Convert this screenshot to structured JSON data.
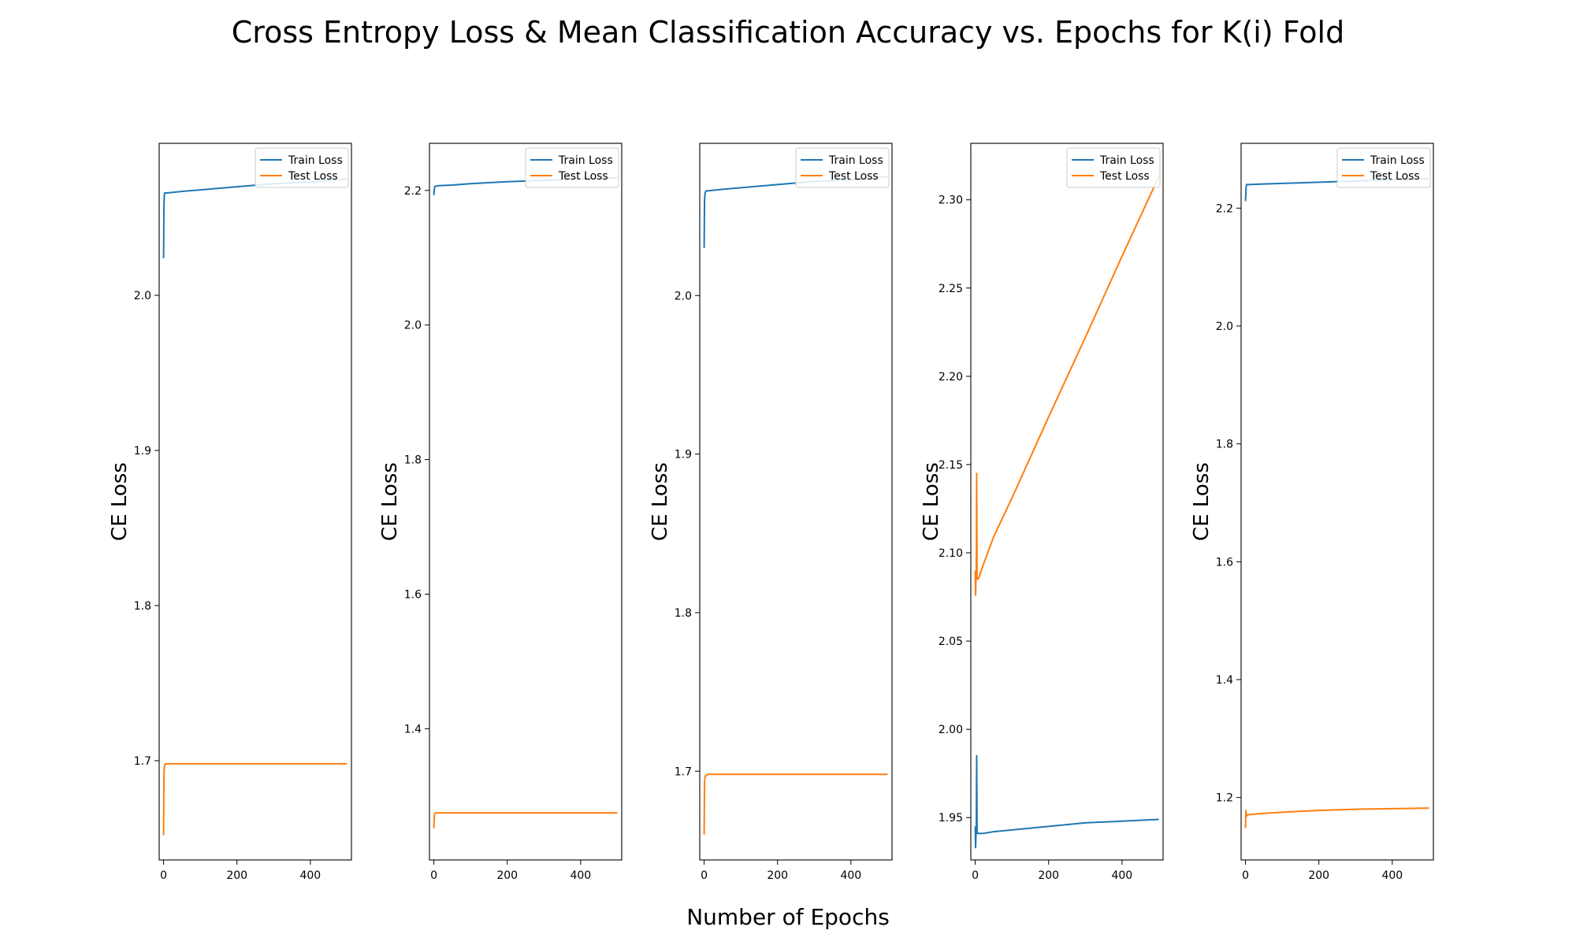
{
  "figure": {
    "title": "Cross Entropy Loss & Mean Classification Accuracy vs. Epochs for K(i) Fold",
    "xlabel": "Number of Epochs"
  },
  "chart_data": [
    {
      "type": "line",
      "ylabel": "CE Loss",
      "xlim": [
        -12,
        512
      ],
      "ylim": [
        1.636,
        2.098
      ],
      "xticks": [
        0,
        200,
        400
      ],
      "yticks": [
        1.7,
        1.8,
        1.9,
        2.0
      ],
      "legend": "top-right",
      "series": [
        {
          "name": "Train Loss",
          "color": "#1f77b4",
          "x": [
            0,
            1,
            2,
            3,
            5,
            10,
            50,
            100,
            200,
            300,
            400,
            500
          ],
          "y": [
            2.024,
            2.058,
            2.065,
            2.066,
            2.066,
            2.066,
            2.067,
            2.068,
            2.07,
            2.072,
            2.073,
            2.075
          ]
        },
        {
          "name": "Test Loss",
          "color": "#ff7f0e",
          "x": [
            0,
            1,
            2,
            3,
            5,
            10,
            50,
            100,
            200,
            300,
            400,
            500
          ],
          "y": [
            1.652,
            1.69,
            1.696,
            1.697,
            1.698,
            1.698,
            1.698,
            1.698,
            1.698,
            1.698,
            1.698,
            1.698
          ]
        }
      ]
    },
    {
      "type": "line",
      "ylabel": "CE Loss",
      "xlim": [
        -12,
        512
      ],
      "ylim": [
        1.205,
        2.27
      ],
      "xticks": [
        0,
        200,
        400
      ],
      "yticks": [
        1.4,
        1.6,
        1.8,
        2.0,
        2.2
      ],
      "legend": "top-right",
      "series": [
        {
          "name": "Train Loss",
          "color": "#1f77b4",
          "x": [
            0,
            1,
            2,
            3,
            5,
            10,
            50,
            100,
            200,
            300,
            400,
            500
          ],
          "y": [
            2.193,
            2.2,
            2.205,
            2.206,
            2.206,
            2.207,
            2.208,
            2.21,
            2.213,
            2.215,
            2.217,
            2.219
          ]
        },
        {
          "name": "Test Loss",
          "color": "#ff7f0e",
          "x": [
            0,
            1,
            2,
            3,
            5,
            10,
            50,
            100,
            200,
            300,
            400,
            500
          ],
          "y": [
            1.252,
            1.268,
            1.273,
            1.274,
            1.275,
            1.275,
            1.275,
            1.275,
            1.275,
            1.275,
            1.275,
            1.275
          ]
        }
      ]
    },
    {
      "type": "line",
      "ylabel": "CE Loss",
      "xlim": [
        -12,
        512
      ],
      "ylim": [
        1.644,
        2.096
      ],
      "xticks": [
        0,
        200,
        400
      ],
      "yticks": [
        1.7,
        1.8,
        1.9,
        2.0
      ],
      "legend": "top-right",
      "series": [
        {
          "name": "Train Loss",
          "color": "#1f77b4",
          "x": [
            0,
            1,
            2,
            3,
            5,
            10,
            50,
            100,
            200,
            300,
            400,
            500
          ],
          "y": [
            2.03,
            2.058,
            2.064,
            2.065,
            2.066,
            2.066,
            2.067,
            2.068,
            2.07,
            2.072,
            2.073,
            2.075
          ]
        },
        {
          "name": "Test Loss",
          "color": "#ff7f0e",
          "x": [
            0,
            1,
            2,
            3,
            5,
            10,
            50,
            100,
            200,
            300,
            400,
            500
          ],
          "y": [
            1.66,
            1.692,
            1.696,
            1.697,
            1.697,
            1.698,
            1.698,
            1.698,
            1.698,
            1.698,
            1.698,
            1.698
          ]
        }
      ]
    },
    {
      "type": "line",
      "ylabel": "CE Loss",
      "xlim": [
        -12,
        512
      ],
      "ylim": [
        1.926,
        2.332
      ],
      "xticks": [
        0,
        200,
        400
      ],
      "yticks": [
        1.95,
        2.0,
        2.05,
        2.1,
        2.15,
        2.2,
        2.25,
        2.3
      ],
      "legend": "top-right",
      "series": [
        {
          "name": "Train Loss",
          "color": "#1f77b4",
          "x": [
            0,
            1,
            2,
            3,
            4,
            5,
            7,
            10,
            20,
            50,
            100,
            200,
            300,
            400,
            500
          ],
          "y": [
            1.945,
            1.933,
            1.94,
            1.942,
            1.985,
            1.942,
            1.941,
            1.941,
            1.941,
            1.942,
            1.943,
            1.945,
            1.947,
            1.948,
            1.949
          ]
        },
        {
          "name": "Test Loss",
          "color": "#ff7f0e",
          "x": [
            0,
            1,
            2,
            3,
            4,
            5,
            7,
            10,
            20,
            50,
            100,
            200,
            300,
            400,
            500
          ],
          "y": [
            2.09,
            2.076,
            2.085,
            2.087,
            2.145,
            2.086,
            2.085,
            2.086,
            2.092,
            2.109,
            2.131,
            2.177,
            2.222,
            2.268,
            2.313
          ]
        }
      ]
    },
    {
      "type": "line",
      "ylabel": "CE Loss",
      "xlim": [
        -12,
        512
      ],
      "ylim": [
        1.094,
        2.31
      ],
      "xticks": [
        0,
        200,
        400
      ],
      "yticks": [
        1.2,
        1.4,
        1.6,
        1.8,
        2.0,
        2.2
      ],
      "legend": "top-right",
      "series": [
        {
          "name": "Train Loss",
          "color": "#1f77b4",
          "x": [
            0,
            1,
            2,
            3,
            5,
            10,
            50,
            100,
            200,
            300,
            400,
            500
          ],
          "y": [
            2.212,
            2.225,
            2.238,
            2.24,
            2.24,
            2.24,
            2.241,
            2.242,
            2.244,
            2.246,
            2.248,
            2.25
          ]
        },
        {
          "name": "Test Loss",
          "color": "#ff7f0e",
          "x": [
            0,
            1,
            2,
            3,
            5,
            10,
            50,
            100,
            200,
            300,
            400,
            500
          ],
          "y": [
            1.148,
            1.178,
            1.167,
            1.172,
            1.17,
            1.171,
            1.173,
            1.175,
            1.178,
            1.18,
            1.181,
            1.182
          ]
        }
      ]
    }
  ]
}
